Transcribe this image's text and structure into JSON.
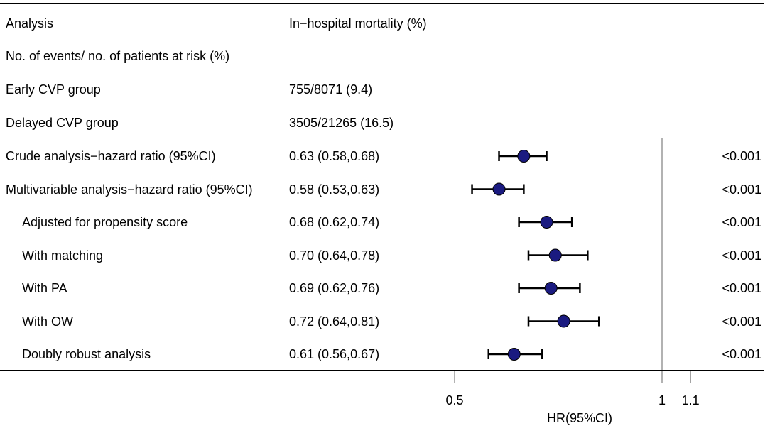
{
  "header": {
    "analysis_label": "Analysis",
    "outcome_label": "In−hospital mortality (%)"
  },
  "info_rows": [
    {
      "label": "No. of events/ no. of patients at risk (%)",
      "value": ""
    },
    {
      "label": "Early CVP group",
      "value": "755/8071 (9.4)"
    },
    {
      "label": "Delayed CVP group",
      "value": "3505/21265 (16.5)"
    }
  ],
  "chart_data": {
    "type": "scatter",
    "subtype": "forest-plot",
    "xlabel": "HR(95%CI)",
    "x_ticks": [
      0.5,
      1,
      1.1
    ],
    "x_tick_labels": [
      "0.5",
      "1",
      "1.1"
    ],
    "reference_line": 1,
    "marker_color": "#1a1a80",
    "rows": [
      {
        "label": "Crude analysis−hazard ratio (95%CI)",
        "indent": false,
        "estimate_text": "0.63 (0.58,0.68)",
        "hr": 0.63,
        "lower": 0.58,
        "upper": 0.68,
        "p": "<0.001"
      },
      {
        "label": "Multivariable analysis−hazard ratio (95%CI)",
        "indent": false,
        "estimate_text": "0.58 (0.53,0.63)",
        "hr": 0.58,
        "lower": 0.53,
        "upper": 0.63,
        "p": "<0.001"
      },
      {
        "label": "Adjusted for propensity score",
        "indent": true,
        "estimate_text": "0.68 (0.62,0.74)",
        "hr": 0.68,
        "lower": 0.62,
        "upper": 0.74,
        "p": "<0.001"
      },
      {
        "label": "With matching",
        "indent": true,
        "estimate_text": "0.70 (0.64,0.78)",
        "hr": 0.7,
        "lower": 0.64,
        "upper": 0.78,
        "p": "<0.001"
      },
      {
        "label": "With PA",
        "indent": true,
        "estimate_text": "0.69 (0.62,0.76)",
        "hr": 0.69,
        "lower": 0.62,
        "upper": 0.76,
        "p": "<0.001"
      },
      {
        "label": "With OW",
        "indent": true,
        "estimate_text": "0.72 (0.64,0.81)",
        "hr": 0.72,
        "lower": 0.64,
        "upper": 0.81,
        "p": "<0.001"
      },
      {
        "label": "Doubly robust analysis",
        "indent": true,
        "estimate_text": "0.61 (0.56,0.67)",
        "hr": 0.61,
        "lower": 0.56,
        "upper": 0.67,
        "p": "<0.001"
      }
    ]
  }
}
